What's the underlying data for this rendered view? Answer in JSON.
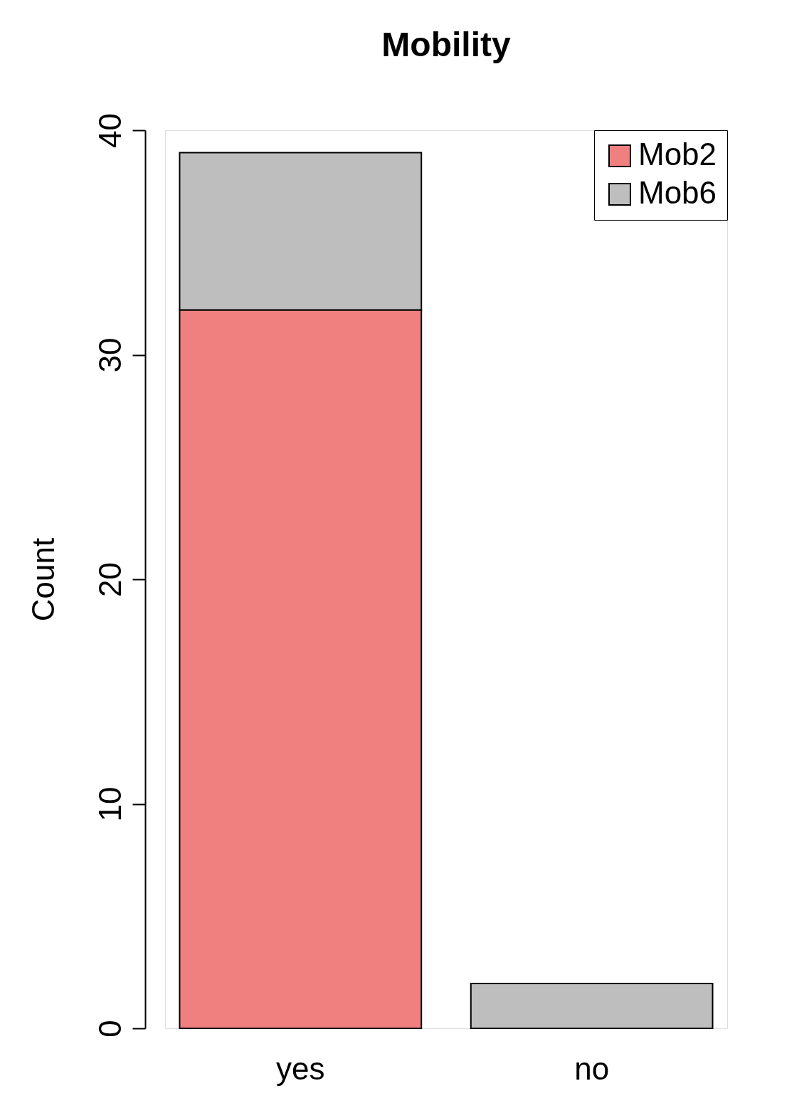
{
  "chart_data": {
    "type": "bar",
    "title": "Mobility",
    "ylabel": "Count",
    "stacked": true,
    "categories": [
      "yes",
      "no"
    ],
    "series": [
      {
        "name": "Mob2",
        "color": "#f08080",
        "values": [
          32,
          0
        ]
      },
      {
        "name": "Mob6",
        "color": "#bebebe",
        "values": [
          7,
          2
        ]
      }
    ],
    "ylim": [
      0,
      40
    ],
    "yticks": [
      0,
      10,
      20,
      30,
      40
    ],
    "grid": false,
    "legend": "top right"
  }
}
